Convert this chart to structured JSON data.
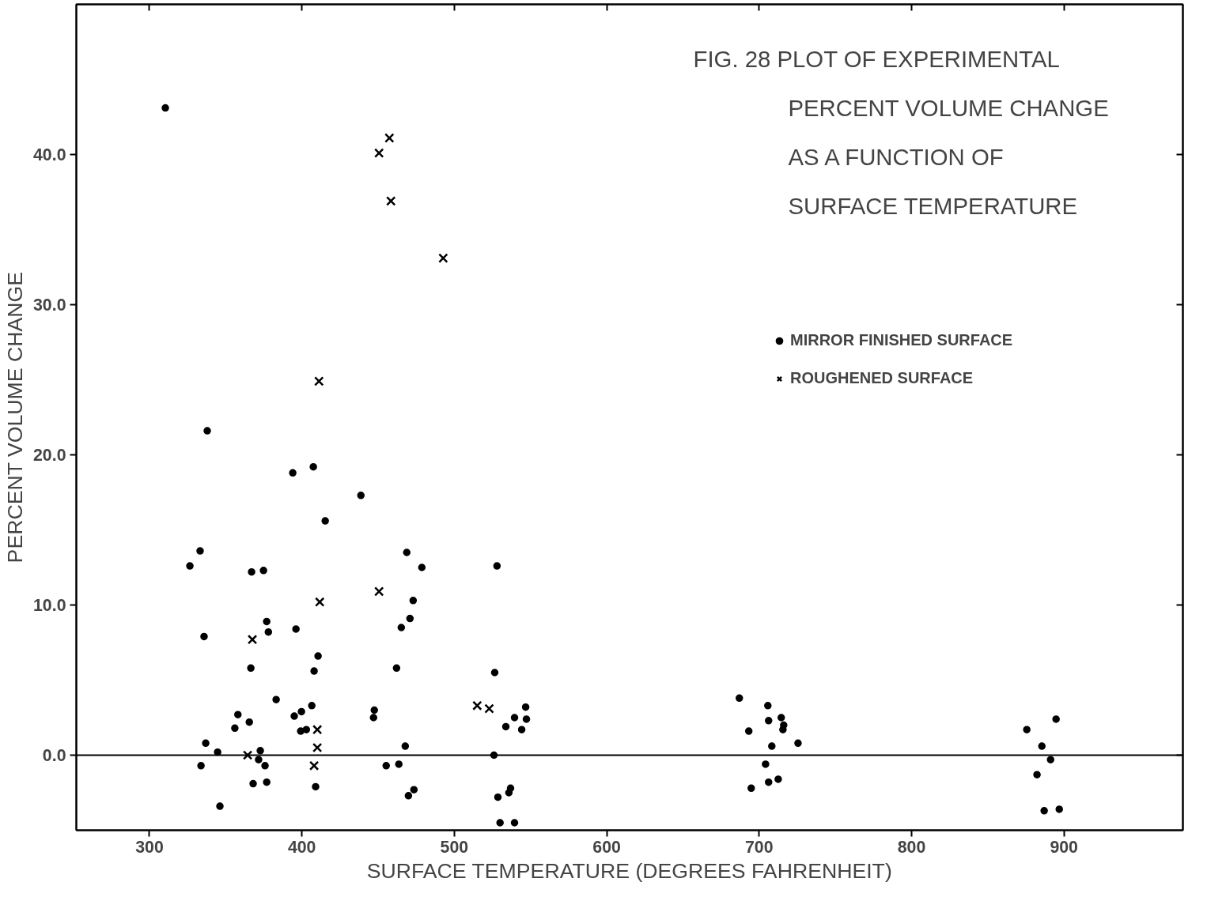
{
  "chart_data": {
    "type": "scatter",
    "title": "FIG. 28 PLOT OF EXPERIMENTAL PERCENT VOLUME CHANGE AS A FUNCTION OF SURFACE TEMPERATURE",
    "xlabel": "SURFACE TEMPERATURE (DEGREES FAHRENHEIT)",
    "ylabel": "PERCENT VOLUME CHANGE",
    "xlim": [
      252,
      978
    ],
    "ylim": [
      -5,
      50
    ],
    "xticks": [
      300,
      400,
      500,
      600,
      700,
      800,
      900
    ],
    "yticks": [
      {
        "value": 0,
        "label": "0.0"
      },
      {
        "value": 10,
        "label": "10.0"
      },
      {
        "value": 20,
        "label": "20.0"
      },
      {
        "value": 30,
        "label": "30.0"
      },
      {
        "value": 40,
        "label": "40.0"
      }
    ],
    "grid": false,
    "legend": "top right",
    "ref_lines": [
      {
        "axis": "y",
        "value": 0,
        "color": "#000000"
      }
    ],
    "series": [
      {
        "name": "MIRROR FINISHED SURFACE",
        "color": "#000000",
        "marker": "circle",
        "x": [
          310.4,
          337.9,
          326.5,
          333.2,
          335.8,
          367,
          374.8,
          376.9,
          378,
          366.5,
          383.1,
          394,
          407.5,
          396.1,
          410.6,
          408,
          415.3,
          438.7,
          468.8,
          478.7,
          473,
          470.9,
          465.2,
          462.1,
          528,
          526.5,
          447.5,
          447,
          358,
          356,
          365.5,
          395,
          399.7,
          406.5,
          399.2,
          402.9,
          336.9,
          344.7,
          333.8,
          346.2,
          372.7,
          371.6,
          375.8,
          368,
          376.9,
          409,
          467.8,
          463.6,
          455.3,
          469.9,
          473.5,
          526,
          533.8,
          528.6,
          535.8,
          536.9,
          530,
          539.5,
          539.5,
          544.2,
          546.8,
          547.3,
          687,
          693.2,
          705.7,
          706.2,
          714.5,
          716.1,
          715.6,
          708.3,
          725.5,
          704.2,
          706.2,
          712.5,
          694.8,
          875.6,
          885.5,
          894.8,
          891.2,
          882.3,
          887,
          896.9
        ],
        "values": [
          43.1,
          21.6,
          12.6,
          13.6,
          7.9,
          12.2,
          12.3,
          8.9,
          8.2,
          5.8,
          3.7,
          18.8,
          19.2,
          8.4,
          6.6,
          5.6,
          15.6,
          17.3,
          13.5,
          12.5,
          10.3,
          9.1,
          8.5,
          5.8,
          12.6,
          5.5,
          3.0,
          2.5,
          2.7,
          1.8,
          2.2,
          2.6,
          2.9,
          3.3,
          1.6,
          1.7,
          0.8,
          0.2,
          -0.7,
          -3.4,
          0.3,
          -0.3,
          -0.7,
          -1.9,
          -1.8,
          -2.1,
          0.6,
          -0.6,
          -0.7,
          -2.7,
          -2.3,
          0.0,
          1.9,
          -2.8,
          -2.5,
          -2.2,
          -4.5,
          -4.5,
          2.5,
          1.7,
          3.2,
          2.4,
          3.8,
          1.6,
          3.3,
          2.3,
          2.5,
          2.0,
          1.7,
          0.6,
          0.8,
          -0.6,
          -1.8,
          -1.6,
          -2.2,
          1.7,
          0.6,
          2.4,
          -0.3,
          -1.3,
          -3.7,
          -3.6
        ]
      },
      {
        "name": "ROUGHENED SURFACE",
        "color": "#000000",
        "marker": "cross",
        "x": [
          457.4,
          450.6,
          458.4,
          492.7,
          411.2,
          411.7,
          367.5,
          450.6,
          515,
          522.9,
          410.1,
          410.1,
          408,
          364.4
        ],
        "values": [
          41.1,
          40.1,
          36.9,
          33.1,
          24.9,
          10.2,
          7.7,
          10.9,
          3.3,
          3.1,
          1.7,
          0.5,
          -0.7,
          0.0
        ]
      }
    ]
  }
}
